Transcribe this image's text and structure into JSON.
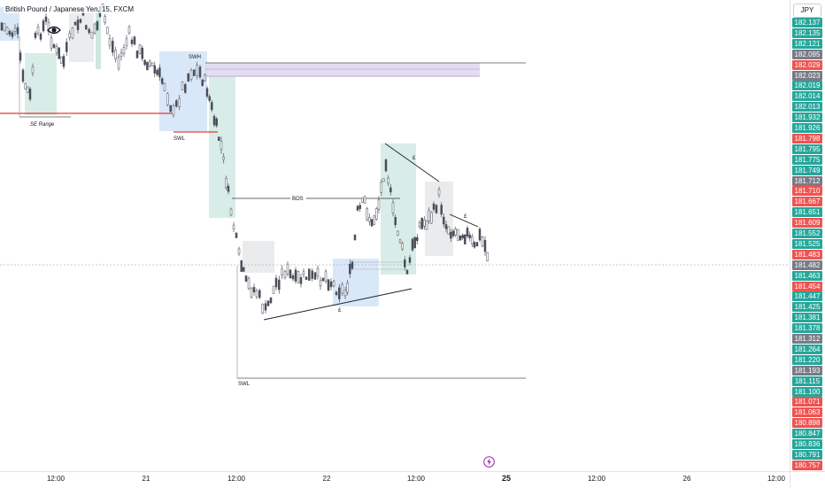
{
  "symbol": {
    "title": "British Pound / Japanese Yen, 15, FXCM",
    "top_annotation": "SE Range"
  },
  "price_axis": {
    "currency": "JPY",
    "labels": [
      {
        "value": "182.137",
        "color": "#26a69a"
      },
      {
        "value": "182.135",
        "color": "#26a69a"
      },
      {
        "value": "182.121",
        "color": "#26a69a"
      },
      {
        "value": "182.095",
        "color": "#787b86"
      },
      {
        "value": "182.029",
        "color": "#ef5350"
      },
      {
        "value": "182.023",
        "color": "#787b86"
      },
      {
        "value": "182.019",
        "color": "#26a69a"
      },
      {
        "value": "182.014",
        "color": "#26a69a"
      },
      {
        "value": "182.013",
        "color": "#26a69a"
      },
      {
        "value": "181.932",
        "color": "#26a69a"
      },
      {
        "value": "181.926",
        "color": "#26a69a"
      },
      {
        "value": "181.798",
        "color": "#ef5350"
      },
      {
        "value": "181.795",
        "color": "#26a69a"
      },
      {
        "value": "181.775",
        "color": "#26a69a"
      },
      {
        "value": "181.749",
        "color": "#26a69a"
      },
      {
        "value": "181.712",
        "color": "#787b86"
      },
      {
        "value": "181.710",
        "color": "#ef5350"
      },
      {
        "value": "181.667",
        "color": "#ef5350"
      },
      {
        "value": "181.651",
        "color": "#26a69a"
      },
      {
        "value": "181.609",
        "color": "#ef5350"
      },
      {
        "value": "181.552",
        "color": "#26a69a"
      },
      {
        "value": "181.525",
        "color": "#26a69a"
      },
      {
        "value": "181.483",
        "color": "#ef5350"
      },
      {
        "value": "181.482",
        "color": "#787b86"
      },
      {
        "value": "181.463",
        "color": "#26a69a"
      },
      {
        "value": "181.454",
        "color": "#ef5350"
      },
      {
        "value": "181.447",
        "color": "#26a69a"
      },
      {
        "value": "181.425",
        "color": "#26a69a"
      },
      {
        "value": "181.381",
        "color": "#26a69a"
      },
      {
        "value": "181.378",
        "color": "#26a69a"
      },
      {
        "value": "181.312",
        "color": "#787b86"
      },
      {
        "value": "181.264",
        "color": "#26a69a"
      },
      {
        "value": "181.220",
        "color": "#26a69a"
      },
      {
        "value": "181.193",
        "color": "#787b86"
      },
      {
        "value": "181.115",
        "color": "#26a69a"
      },
      {
        "value": "181.100",
        "color": "#26a69a"
      },
      {
        "value": "181.071",
        "color": "#ef5350"
      },
      {
        "value": "181.063",
        "color": "#ef5350"
      },
      {
        "value": "180.898",
        "color": "#ef5350"
      },
      {
        "value": "180.847",
        "color": "#26a69a"
      },
      {
        "value": "180.836",
        "color": "#26a69a"
      },
      {
        "value": "180.791",
        "color": "#26a69a"
      },
      {
        "value": "180.757",
        "color": "#ef5350"
      }
    ]
  },
  "time_axis": {
    "labels": [
      {
        "text": "12:00",
        "bold": false
      },
      {
        "text": "21",
        "bold": false
      },
      {
        "text": "12:00",
        "bold": false
      },
      {
        "text": "22",
        "bold": false
      },
      {
        "text": "12:00",
        "bold": false
      },
      {
        "text": "25",
        "bold": true
      },
      {
        "text": "12:00",
        "bold": false
      },
      {
        "text": "26",
        "bold": false
      },
      {
        "text": "12:00",
        "bold": false
      }
    ]
  },
  "annotations": {
    "se_range": "SE Range",
    "swh": "SWH",
    "swl_upper": "SWL",
    "bos": "BOS",
    "swl_lower": "SWL",
    "trend_label_low": "£",
    "trend_label_high": "£",
    "trend_label_small": "£"
  },
  "colors": {
    "up": "#26a69a",
    "down": "#ef5350",
    "candle": "#4a4e5a",
    "zone_blue": "#cfe2f6",
    "zone_green": "#d4ebe5",
    "zone_gray": "#e6e7ea",
    "zone_purple": "#d9d2ee",
    "red_line": "#e53935"
  },
  "icons": {
    "eye": "eye-icon",
    "bolt": "lightning-icon"
  }
}
